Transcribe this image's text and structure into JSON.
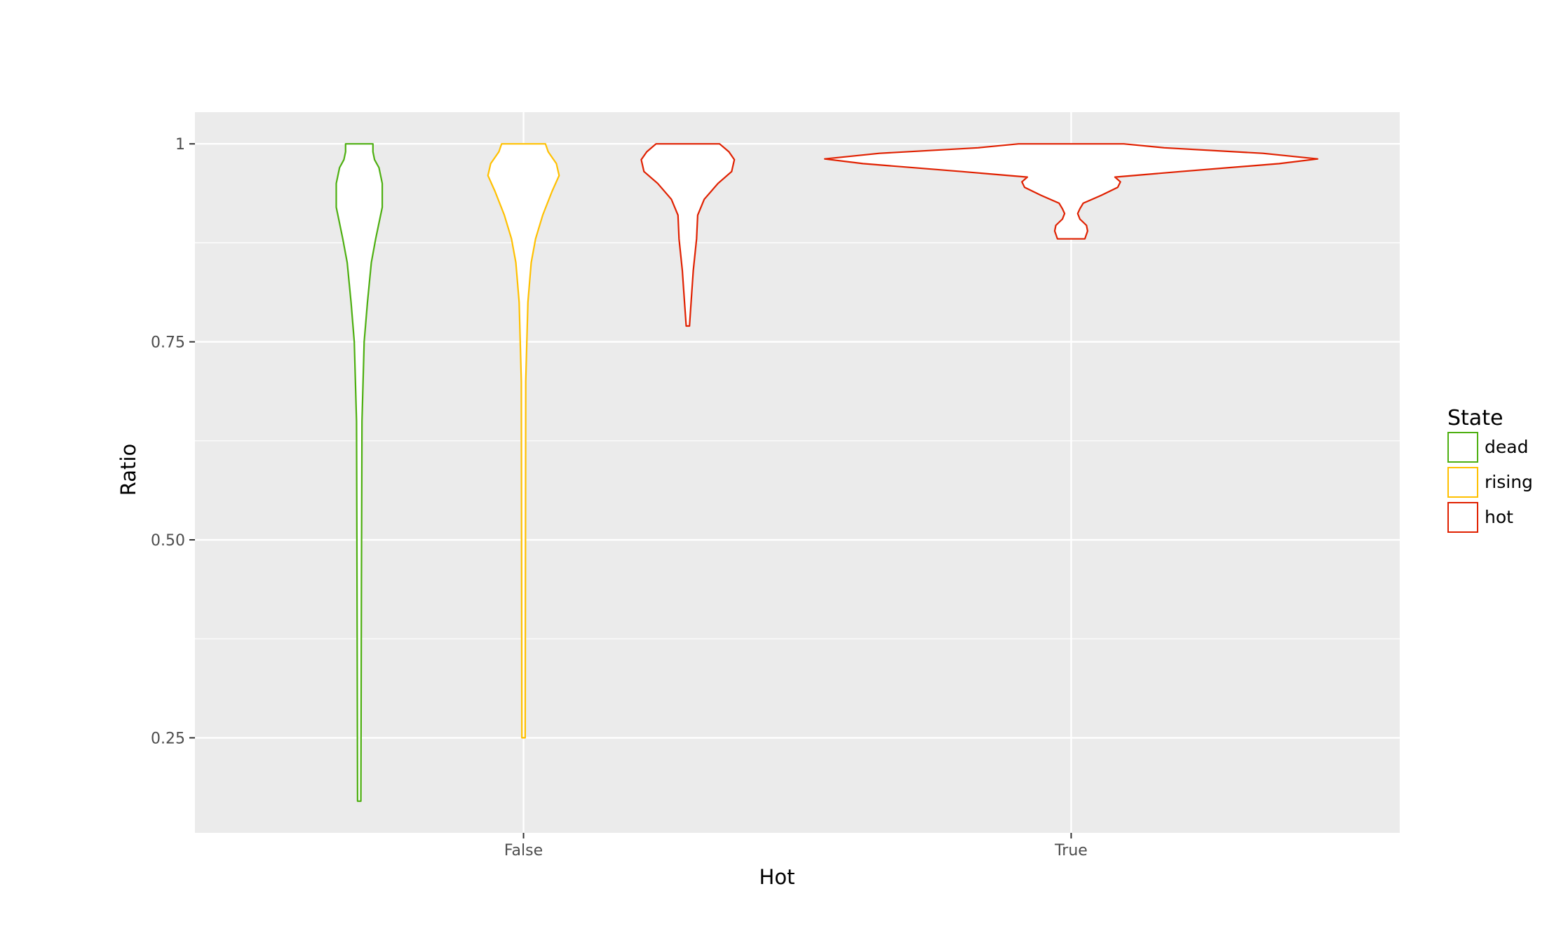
{
  "chart_data": {
    "type": "violin",
    "xlabel": "Hot",
    "ylabel": "Ratio",
    "categories": [
      "False",
      "True"
    ],
    "ylim": [
      0.13,
      1.04
    ],
    "y_ticks": [
      {
        "value": 0.25,
        "label": "0.25"
      },
      {
        "value": 0.5,
        "label": "0.50"
      },
      {
        "value": 0.75,
        "label": "0.75"
      },
      {
        "value": 1.0,
        "label": "1"
      }
    ],
    "y_minor_ticks": [
      0.375,
      0.625,
      0.875
    ],
    "grid": true,
    "legend": {
      "title": "State",
      "placement": "right",
      "entries": [
        {
          "label": "dead",
          "color": "#4daf10"
        },
        {
          "label": "rising",
          "color": "#ffc000"
        },
        {
          "label": "hot",
          "color": "#e02000"
        }
      ]
    },
    "series": [
      {
        "name": "dead",
        "category": "False",
        "offset": -0.3,
        "color": "#4daf10",
        "y_min": 0.17,
        "y_max": 1.0,
        "profile": [
          [
            0.17,
            0.003
          ],
          [
            0.45,
            0.004
          ],
          [
            0.65,
            0.005
          ],
          [
            0.75,
            0.009
          ],
          [
            0.8,
            0.015
          ],
          [
            0.85,
            0.022
          ],
          [
            0.88,
            0.03
          ],
          [
            0.92,
            0.042
          ],
          [
            0.95,
            0.042
          ],
          [
            0.97,
            0.036
          ],
          [
            0.98,
            0.028
          ],
          [
            0.99,
            0.025
          ],
          [
            1.0,
            0.025
          ]
        ]
      },
      {
        "name": "rising",
        "category": "False",
        "offset": 0.0,
        "color": "#ffc000",
        "y_min": 0.25,
        "y_max": 1.0,
        "profile": [
          [
            0.25,
            0.003
          ],
          [
            0.7,
            0.004
          ],
          [
            0.8,
            0.008
          ],
          [
            0.85,
            0.014
          ],
          [
            0.88,
            0.022
          ],
          [
            0.91,
            0.035
          ],
          [
            0.94,
            0.052
          ],
          [
            0.96,
            0.065
          ],
          [
            0.975,
            0.06
          ],
          [
            0.99,
            0.045
          ],
          [
            1.0,
            0.04
          ]
        ]
      },
      {
        "name": "hot",
        "category": "False",
        "offset": 0.3,
        "color": "#e02000",
        "y_min": 0.77,
        "y_max": 1.0,
        "profile": [
          [
            0.77,
            0.003
          ],
          [
            0.8,
            0.006
          ],
          [
            0.84,
            0.01
          ],
          [
            0.88,
            0.016
          ],
          [
            0.91,
            0.018
          ],
          [
            0.93,
            0.03
          ],
          [
            0.95,
            0.055
          ],
          [
            0.965,
            0.08
          ],
          [
            0.98,
            0.085
          ],
          [
            0.99,
            0.075
          ],
          [
            1.0,
            0.058
          ]
        ]
      },
      {
        "name": "hot",
        "category": "True",
        "offset": 0.0,
        "color": "#e02000",
        "y_min": 0.88,
        "y_max": 1.0,
        "profile": [
          [
            0.88,
            0.025
          ],
          [
            0.89,
            0.03
          ],
          [
            0.897,
            0.028
          ],
          [
            0.905,
            0.016
          ],
          [
            0.912,
            0.012
          ],
          [
            0.918,
            0.016
          ],
          [
            0.925,
            0.022
          ],
          [
            0.935,
            0.055
          ],
          [
            0.945,
            0.085
          ],
          [
            0.952,
            0.09
          ],
          [
            0.958,
            0.08
          ],
          [
            0.965,
            0.2
          ],
          [
            0.975,
            0.38
          ],
          [
            0.981,
            0.45
          ],
          [
            0.988,
            0.35
          ],
          [
            0.995,
            0.17
          ],
          [
            1.0,
            0.096
          ]
        ]
      }
    ]
  }
}
